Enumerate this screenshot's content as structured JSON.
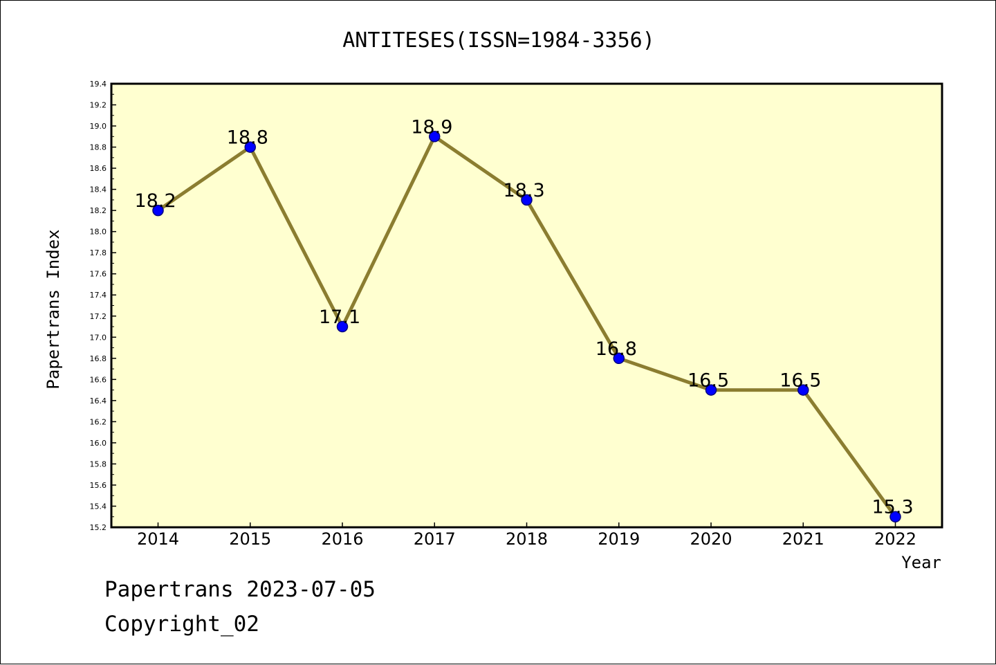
{
  "chart_data": {
    "type": "line",
    "title": "ANTITESES(ISSN=1984-3356)",
    "xlabel": "Year",
    "ylabel": "Papertrans Index",
    "categories": [
      "2014",
      "2015",
      "2016",
      "2017",
      "2018",
      "2019",
      "2020",
      "2021",
      "2022"
    ],
    "series": [
      {
        "values": [
          18.2,
          18.8,
          17.1,
          18.9,
          18.3,
          16.8,
          16.5,
          16.5,
          15.3
        ],
        "data_labels": [
          "18.2",
          "18.8",
          "17.1",
          "18.9",
          "18.3",
          "16.8",
          "16.5",
          "16.5",
          "15.3"
        ]
      }
    ],
    "ylim": [
      15.2,
      19.4
    ],
    "ytick_step": 0.2,
    "grid": false,
    "legend": "none",
    "colors": {
      "plot_background": "#ffffd0",
      "line": "#8b7d30",
      "marker_fill": "#0000ff",
      "marker_edge": "#000080"
    }
  },
  "footer": {
    "line1": "Papertrans 2023-07-05",
    "line2": "Copyright_02"
  }
}
